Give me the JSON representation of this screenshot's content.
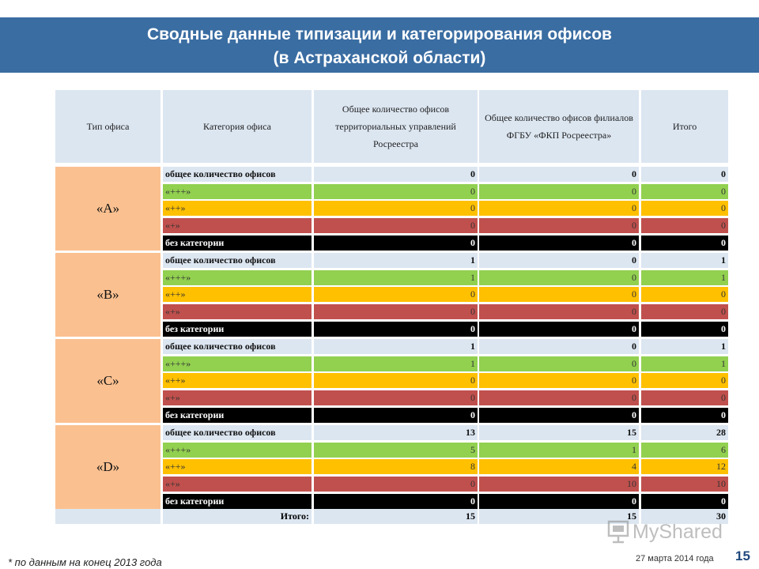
{
  "header": {
    "title_line1": "Сводные данные типизации и категорирования офисов",
    "title_line2": "(в Астраханской области)"
  },
  "table": {
    "headers": [
      "Тип офиса",
      "Категория офиса",
      "Общее количество офисов территориальных управлений Росреестра",
      "Общее количество офисов филиалов ФГБУ «ФКП Росреестра»",
      "Итого"
    ],
    "groups": [
      {
        "type": "«А»",
        "rows": [
          {
            "label": "общее количество офисов",
            "v1": "0",
            "v2": "0",
            "v3": "0"
          },
          {
            "label": "«+++»",
            "v1": "0",
            "v2": "0",
            "v3": "0"
          },
          {
            "label": "«++»",
            "v1": "0",
            "v2": "0",
            "v3": "0"
          },
          {
            "label": "«+»",
            "v1": "0",
            "v2": "0",
            "v3": "0"
          },
          {
            "label": "без категории",
            "v1": "0",
            "v2": "0",
            "v3": "0"
          }
        ]
      },
      {
        "type": "«В»",
        "rows": [
          {
            "label": "общее количество офисов",
            "v1": "1",
            "v2": "0",
            "v3": "1"
          },
          {
            "label": "«+++»",
            "v1": "1",
            "v2": "0",
            "v3": "1"
          },
          {
            "label": "«++»",
            "v1": "0",
            "v2": "0",
            "v3": "0"
          },
          {
            "label": "«+»",
            "v1": "0",
            "v2": "0",
            "v3": "0"
          },
          {
            "label": "без категории",
            "v1": "0",
            "v2": "0",
            "v3": "0"
          }
        ]
      },
      {
        "type": "«С»",
        "rows": [
          {
            "label": "общее количество офисов",
            "v1": "1",
            "v2": "0",
            "v3": "1"
          },
          {
            "label": "«+++»",
            "v1": "1",
            "v2": "0",
            "v3": "1"
          },
          {
            "label": "«++»",
            "v1": "0",
            "v2": "0",
            "v3": "0"
          },
          {
            "label": "«+»",
            "v1": "0",
            "v2": "0",
            "v3": "0"
          },
          {
            "label": "без категории",
            "v1": "0",
            "v2": "0",
            "v3": "0"
          }
        ]
      },
      {
        "type": "«D»",
        "rows": [
          {
            "label": "общее количество офисов",
            "v1": "13",
            "v2": "15",
            "v3": "28"
          },
          {
            "label": "«+++»",
            "v1": "5",
            "v2": "1",
            "v3": "6"
          },
          {
            "label": "«++»",
            "v1": "8",
            "v2": "4",
            "v3": "12"
          },
          {
            "label": "«+»",
            "v1": "0",
            "v2": "10",
            "v3": "10"
          },
          {
            "label": "без категории",
            "v1": "0",
            "v2": "0",
            "v3": "0"
          }
        ]
      }
    ],
    "summary": {
      "label": "Итого:",
      "v1": "15",
      "v2": "15",
      "v3": "30"
    }
  },
  "footer": {
    "footnote": "* по данным на конец 2013 года",
    "date": "27 марта 2014 года",
    "page_number": "15",
    "watermark": "MyShared"
  },
  "colors": {
    "header_bg": "#3a6da2",
    "type_cell": "#fac090",
    "total_row": "#dce6f1",
    "cat_plus3": "#92d050",
    "cat_plus2": "#ffc000",
    "cat_plus1": "#c0504d",
    "no_category": "#000000"
  }
}
